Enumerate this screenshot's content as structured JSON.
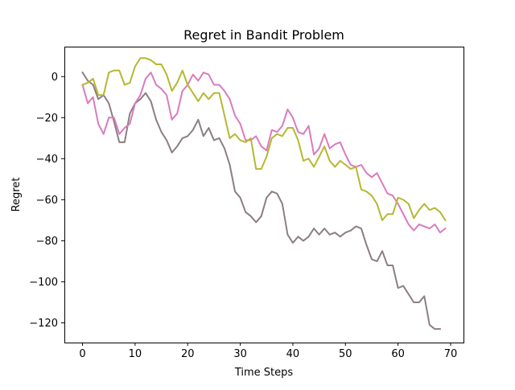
{
  "chart_data": {
    "type": "line",
    "title": "Regret in Bandit Problem",
    "xlabel": "Time Steps",
    "ylabel": "Regret",
    "xlim": [
      -3.45,
      72.45
    ],
    "ylim": [
      -129.6,
      14.6
    ],
    "xticks": [
      0,
      10,
      20,
      30,
      40,
      50,
      60,
      70
    ],
    "yticks": [
      -120,
      -100,
      -80,
      -60,
      -40,
      -20,
      0
    ],
    "ytick_labels": [
      "−120",
      "−100",
      "−80",
      "−60",
      "−40",
      "−20",
      "0"
    ],
    "grid": false,
    "legend": "none",
    "x": [
      0,
      1,
      2,
      3,
      4,
      5,
      6,
      7,
      8,
      9,
      10,
      11,
      12,
      13,
      14,
      15,
      16,
      17,
      18,
      19,
      20,
      21,
      22,
      23,
      24,
      25,
      26,
      27,
      28,
      29,
      30,
      31,
      32,
      33,
      34,
      35,
      36,
      37,
      38,
      39,
      40,
      41,
      42,
      43,
      44,
      45,
      46,
      47,
      48,
      49,
      50,
      51,
      52,
      53,
      54,
      55,
      56,
      57,
      58,
      59,
      60,
      61,
      62,
      63,
      64,
      65,
      66,
      67,
      68,
      69
    ],
    "series": [
      {
        "color": "#8c7f80",
        "values": [
          2,
          -2,
          -4,
          -11,
          -9,
          -13,
          -22,
          -32,
          -32,
          -18,
          -13,
          -11,
          -8,
          -12,
          -21,
          -27,
          -31,
          -37,
          -34,
          -30,
          -29,
          -26,
          -21,
          -29,
          -25,
          -31,
          -30,
          -35,
          -43,
          -56,
          -59,
          -66,
          -68,
          -71,
          -68,
          -59,
          -56,
          -57,
          -62,
          -77,
          -81,
          -78,
          -80,
          -78,
          -74,
          -77,
          -74,
          -77,
          -76,
          -78,
          -76,
          -75,
          -73,
          -74,
          -82,
          -89,
          -90,
          -85,
          -92,
          -92,
          -103,
          -102,
          -106,
          -110,
          -110,
          -107,
          -121,
          -123,
          -123,
          null
        ]
      },
      {
        "color": "#d97bbf",
        "values": [
          -4,
          -13,
          -10,
          -23,
          -28,
          -20,
          -20,
          -28,
          -25,
          -23,
          -13,
          -9,
          -1,
          2,
          -4,
          -6,
          -9,
          -21,
          -18,
          -7,
          -4,
          1,
          -2,
          2,
          1,
          -4,
          -4,
          -7,
          -11,
          -19,
          -23,
          -31,
          -31,
          -29,
          -34,
          -36,
          -26,
          -27,
          -24,
          -16,
          -20,
          -27,
          -28,
          -24,
          -38,
          -35,
          -28,
          -35,
          -33,
          -32,
          -38,
          -43,
          -44,
          -43,
          -47,
          -49,
          -47,
          -52,
          -57,
          -58,
          -62,
          -67,
          -72,
          -75,
          -72,
          -73,
          -74,
          -72,
          -76,
          -74
        ]
      },
      {
        "color": "#b5b830",
        "values": [
          -4,
          -3,
          -1,
          -9,
          -9,
          2,
          3,
          3,
          -4,
          -3,
          5,
          9,
          9,
          8,
          6,
          6,
          1,
          -7,
          -3,
          3,
          -4,
          -8,
          -12,
          -8,
          -11,
          -8,
          -8,
          -19,
          -30,
          -28,
          -31,
          -32,
          -30,
          -45,
          -45,
          -39,
          -30,
          -28,
          -29,
          -25,
          -25,
          -31,
          -41,
          -40,
          -44,
          -39,
          -34,
          -41,
          -44,
          -41,
          -43,
          -45,
          -44,
          -55,
          -56,
          -58,
          -62,
          -70,
          -67,
          -67,
          -59,
          -60,
          -62,
          -69,
          -65,
          -62,
          -65,
          -64,
          -66,
          -70
        ]
      }
    ]
  }
}
